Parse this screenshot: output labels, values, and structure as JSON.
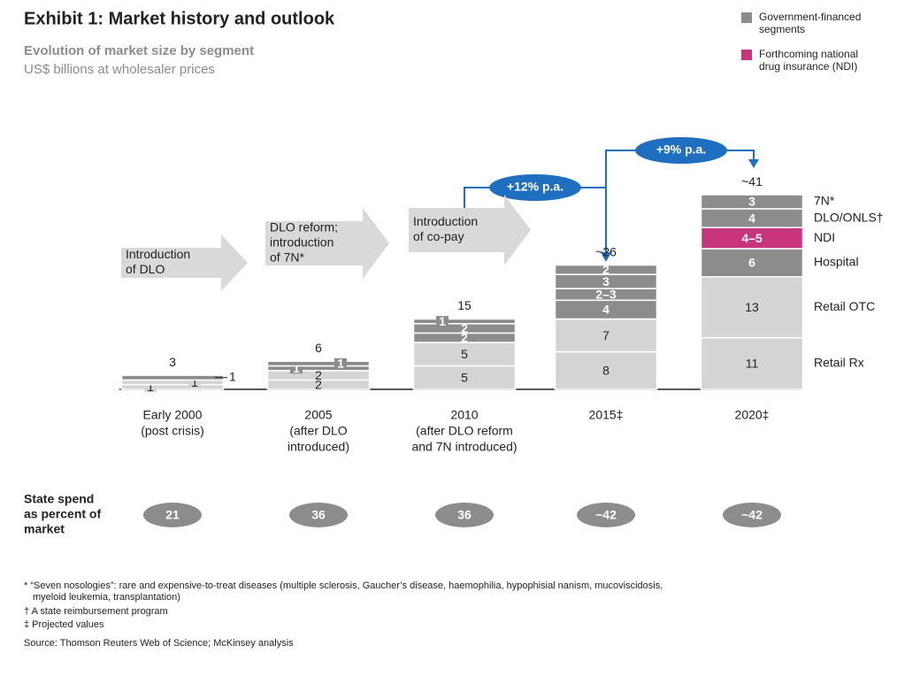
{
  "title": "Exhibit 1: Market history and outlook",
  "subtitle": "Evolution of market size by segment",
  "unit_note": "US$ billions at wholesaler prices",
  "legend": [
    {
      "label": [
        "Government-financed",
        "segments"
      ],
      "color": "#8c8c8c"
    },
    {
      "label": [
        "Forthcoming national",
        "drug insurance (NDI)"
      ],
      "color": "#c8357f"
    }
  ],
  "chart_data": {
    "type": "stacked_bar",
    "categories": [
      "Early 2000",
      "2005",
      "2010",
      "2015‡",
      "2020‡"
    ],
    "category_notes": [
      [
        "(post crisis)"
      ],
      [
        "(after DLO",
        "introduced)"
      ],
      [
        "(after DLO reform",
        "and 7N introduced)"
      ],
      [],
      []
    ],
    "ylim": [
      0,
      45
    ],
    "series": [
      {
        "name": "Retail Rx",
        "color": "#d4d4d4",
        "values": [
          1,
          2,
          5,
          8,
          11
        ]
      },
      {
        "name": "Retail OTC",
        "color": "#d4d4d4",
        "values": [
          1,
          2,
          5,
          7,
          13
        ]
      },
      {
        "name": "Hospital",
        "color": "#8c8c8c",
        "values": [
          1,
          1,
          2,
          4,
          6
        ]
      },
      {
        "name": "NDI",
        "color": "#c8357f",
        "colors": [
          null,
          null,
          null,
          "#8c8c8c",
          "#c8357f"
        ],
        "values": [
          null,
          null,
          null,
          2.5,
          4.5
        ],
        "value_labels": [
          null,
          null,
          null,
          "2–3",
          "4–5"
        ]
      },
      {
        "name": "DLO/ONLS†",
        "color": "#8c8c8c",
        "values": [
          null,
          1,
          2,
          3,
          4
        ]
      },
      {
        "name": "7N*",
        "color": "#8c8c8c",
        "values": [
          null,
          null,
          1,
          2,
          3
        ]
      }
    ],
    "totals": [
      3,
      6,
      15,
      26,
      41
    ],
    "total_labels": [
      "3",
      "6",
      "15",
      "~26",
      "~41"
    ],
    "growth": [
      "+12% p.a.",
      "+9% p.a."
    ],
    "events": [
      [
        "Introduction",
        "of DLO"
      ],
      [
        "DLO reform;",
        "introduction",
        "of 7N*"
      ],
      [
        "Introduction",
        "of co-pay"
      ]
    ]
  },
  "state_spend": {
    "label": [
      "State spend",
      "as percent of",
      "market"
    ],
    "values": [
      21,
      36,
      36,
      42,
      42
    ],
    "value_labels": [
      "21",
      "36",
      "36",
      "~42",
      "~42"
    ]
  },
  "footnotes": [
    "* “Seven nosologies”: rare and expensive-to-treat diseases (multiple sclerosis, Gaucher’s disease, haemophilia, hypophisial nanism, mucoviscidosis,",
    "myeloid leukemia, transplantation)",
    "† A state reimbursement program",
    "‡ Projected values"
  ],
  "source": "Source: Thomson Reuters Web of Science; McKinsey analysis"
}
